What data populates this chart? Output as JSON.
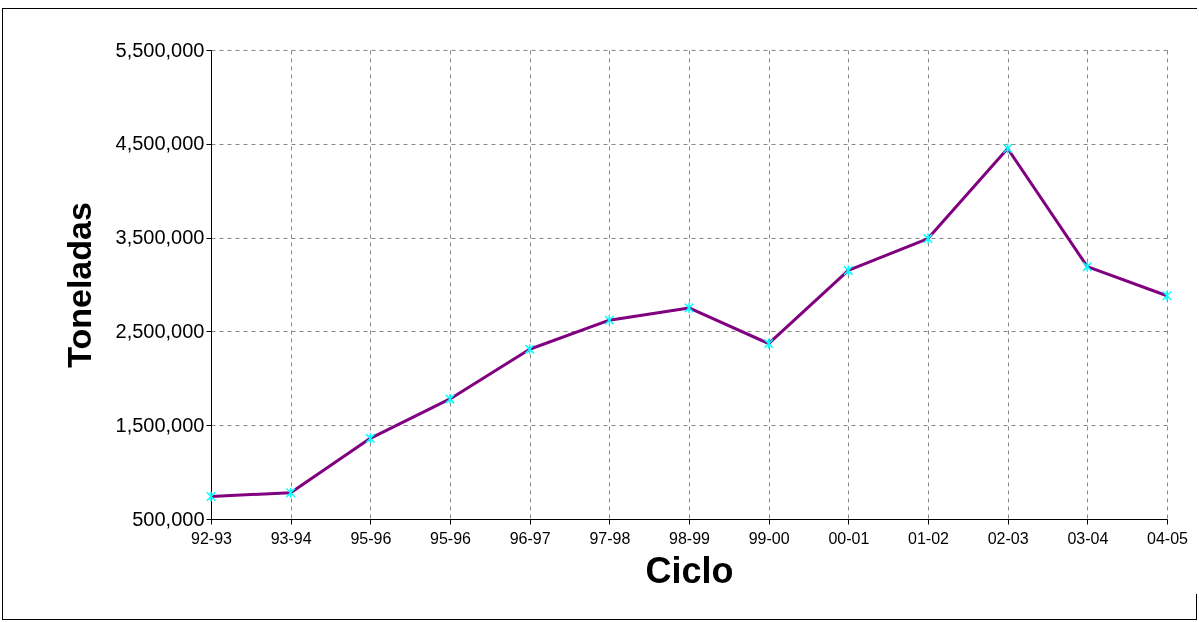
{
  "chart_data": {
    "type": "line",
    "xlabel": "Ciclo",
    "ylabel": "Toneladas",
    "categories": [
      "92-93",
      "93-94",
      "95-96",
      "95-96",
      "96-97",
      "97-98",
      "98-99",
      "99-00",
      "00-01",
      "01-02",
      "02-03",
      "03-04",
      "04-05"
    ],
    "series": [
      {
        "color": "#800080",
        "colors": [
          "#00ffff",
          "#00ffff",
          "#00ffff",
          "#00ffff",
          "#00ffff",
          "#00ffff",
          "#00ffff",
          "#00ffff",
          "#00ffff",
          "#00ffff",
          "#00ffff",
          "#00ffff",
          "#00ffff"
        ],
        "values": [
          740000,
          780000,
          1360000,
          1780000,
          2310000,
          2620000,
          2750000,
          2370000,
          3150000,
          3490000,
          4450000,
          3190000,
          2880000
        ]
      }
    ],
    "ylim": [
      500000,
      5500000
    ],
    "yticks": [
      {
        "value": 500000,
        "label": "500,000"
      },
      {
        "value": 1500000,
        "label": "1,500,000"
      },
      {
        "value": 2500000,
        "label": "2,500,000"
      },
      {
        "value": 3500000,
        "label": "3,500,000"
      },
      {
        "value": 4500000,
        "label": "4,500,000"
      },
      {
        "value": 5500000,
        "label": "5,500,000"
      }
    ],
    "grid": true,
    "marker": "cross",
    "line_style": "solid"
  }
}
